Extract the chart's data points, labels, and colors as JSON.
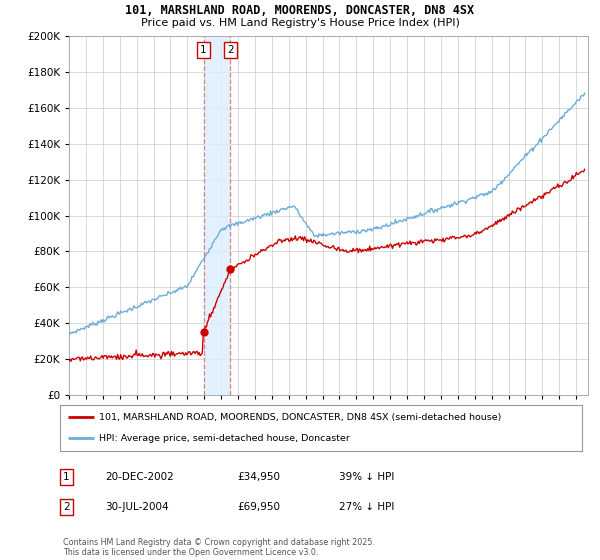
{
  "title1": "101, MARSHLAND ROAD, MOORENDS, DONCASTER, DN8 4SX",
  "title2": "Price paid vs. HM Land Registry's House Price Index (HPI)",
  "legend_line1": "101, MARSHLAND ROAD, MOORENDS, DONCASTER, DN8 4SX (semi-detached house)",
  "legend_line2": "HPI: Average price, semi-detached house, Doncaster",
  "footnote": "Contains HM Land Registry data © Crown copyright and database right 2025.\nThis data is licensed under the Open Government Licence v3.0.",
  "transaction1_date": "20-DEC-2002",
  "transaction1_price": 34950,
  "transaction1_hpi_pct": "39% ↓ HPI",
  "transaction2_date": "30-JUL-2004",
  "transaction2_price": 69950,
  "transaction2_hpi_pct": "27% ↓ HPI",
  "hpi_color": "#6baed6",
  "price_color": "#cc0000",
  "marker_color": "#cc0000",
  "vline_color": "#e08080",
  "shade_color": "#ddeeff",
  "background_color": "#ffffff",
  "grid_color": "#cccccc",
  "ylim": [
    0,
    200000
  ],
  "ytick_step": 20000,
  "xlim_start": 1995,
  "xlim_end": 2025.7
}
